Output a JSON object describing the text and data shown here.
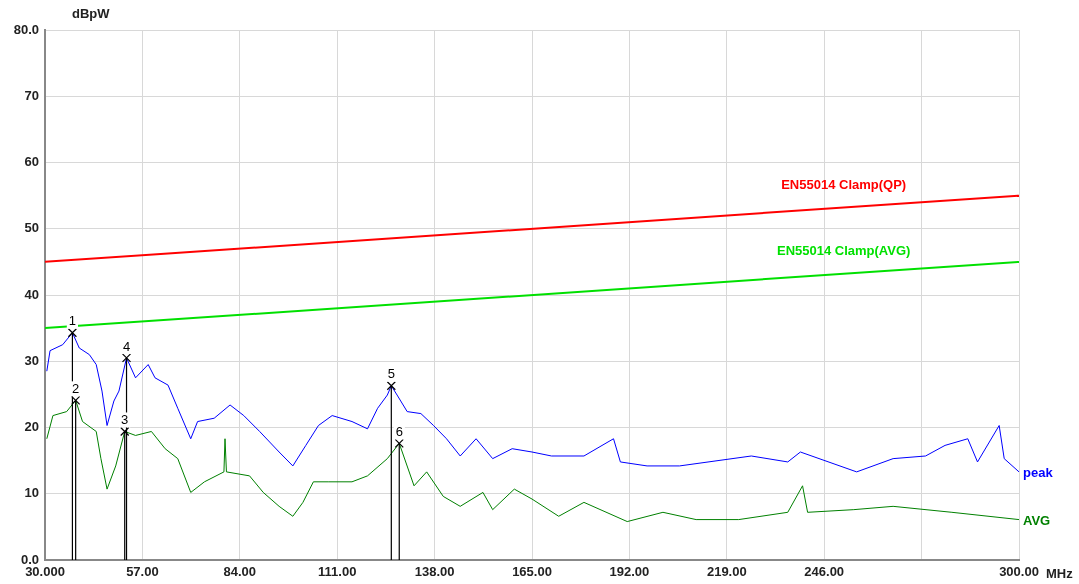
{
  "chart_data": {
    "type": "line",
    "xlabel": "MHz",
    "ylabel": "dBpW",
    "xlim": [
      30,
      300
    ],
    "xticks": [
      {
        "value": 30,
        "label": "30.000"
      },
      {
        "value": 57,
        "label": "57.00"
      },
      {
        "value": 84,
        "label": "84.00"
      },
      {
        "value": 111,
        "label": "111.00"
      },
      {
        "value": 138,
        "label": "138.00"
      },
      {
        "value": 165,
        "label": "165.00"
      },
      {
        "value": 192,
        "label": "192.00"
      },
      {
        "value": 219,
        "label": "219.00"
      },
      {
        "value": 246,
        "label": "246.00"
      },
      {
        "value": 273,
        "label": null
      },
      {
        "value": 300,
        "label": "300.00"
      }
    ],
    "ylim": [
      0,
      80
    ],
    "yticks": [
      {
        "value": 0,
        "label": "0.0"
      },
      10,
      20,
      30,
      40,
      50,
      60,
      70,
      {
        "value": 80,
        "label": "80.0"
      }
    ],
    "grid": true,
    "legend": false,
    "marker": "none",
    "series": [
      {
        "name": "EN55014 Clamp(QP)",
        "color": "#ff0000",
        "x": [
          30,
          300
        ],
        "values": [
          45,
          55
        ]
      },
      {
        "name": "EN55014 Clamp(AVG)",
        "color": "#00e000",
        "x": [
          30,
          300
        ],
        "values": [
          35,
          45
        ]
      },
      {
        "name": "peak",
        "color": "#0000ff",
        "x": [
          30.5,
          31.4,
          34.9,
          37.6,
          39.5,
          42.3,
          44.2,
          45.8,
          47.2,
          49.1,
          50.5,
          52.6,
          55.1,
          58.6,
          60.5,
          64.1,
          66.8,
          70.4,
          72.3,
          76.9,
          81.3,
          85.1,
          89.5,
          94.9,
          98.7,
          102.3,
          105.8,
          109.6,
          115.1,
          119.4,
          122.2,
          124.9,
          126.0,
          127.6,
          130.4,
          134.2,
          137.7,
          141.3,
          145.1,
          149.5,
          154.1,
          159.5,
          165.0,
          170.4,
          179.4,
          187.6,
          189.5,
          196.9,
          205.9,
          225.8,
          235.9,
          239.4,
          255.0,
          265.1,
          274.1,
          279.5,
          285.8,
          288.5,
          294.5,
          295.9,
          300
        ],
        "values": [
          28.5,
          31.6,
          32.5,
          34.3,
          32,
          31,
          29.5,
          25.5,
          20.3,
          24,
          25.5,
          30.5,
          27.5,
          29.5,
          27.5,
          26.4,
          22.9,
          18.3,
          20.9,
          21.4,
          23.4,
          21.8,
          19.4,
          16.3,
          14.2,
          17.3,
          20.3,
          21.8,
          20.9,
          19.8,
          22.9,
          24.9,
          26.3,
          24.9,
          22.4,
          22.1,
          20.3,
          18.3,
          15.7,
          18.3,
          15.3,
          16.8,
          16.3,
          15.7,
          15.7,
          18.3,
          14.8,
          14.2,
          14.2,
          15.7,
          14.8,
          16.3,
          13.3,
          15.3,
          15.7,
          17.3,
          18.3,
          14.8,
          20.3,
          15.3,
          13.3
        ]
      },
      {
        "name": "AVG",
        "color": "#008000",
        "x": [
          30.5,
          32.2,
          36.0,
          38.5,
          40.4,
          44.2,
          45.5,
          47.2,
          49.6,
          52.1,
          55.1,
          59.5,
          63.3,
          66.8,
          70.4,
          74.2,
          79.6,
          79.9,
          80.3,
          86.7,
          90.5,
          94.9,
          98.7,
          101.5,
          104.4,
          108.5,
          115.1,
          119.4,
          124.9,
          128.2,
          132.3,
          135.8,
          140.4,
          145.1,
          151.4,
          154.1,
          160.1,
          165.0,
          172.4,
          179.4,
          191.4,
          201.3,
          210.5,
          222.3,
          235.9,
          240.0,
          241.4,
          254.2,
          265.1,
          281.4,
          300
        ],
        "values": [
          18.3,
          21.8,
          22.4,
          24.1,
          20.9,
          19.4,
          15.3,
          10.7,
          14.2,
          19.4,
          18.8,
          19.4,
          16.8,
          15.3,
          10.2,
          11.8,
          13.3,
          18.3,
          13.3,
          12.7,
          10.2,
          8.1,
          6.6,
          8.7,
          11.8,
          11.8,
          11.8,
          12.7,
          15.3,
          17.6,
          11.2,
          13.3,
          9.6,
          8.1,
          10.2,
          7.6,
          10.7,
          9.2,
          6.6,
          8.7,
          5.8,
          7.2,
          6.1,
          6.1,
          7.2,
          11.2,
          7.2,
          7.6,
          8.1,
          7.2,
          6.1
        ]
      }
    ],
    "annotations": [
      {
        "text": "1",
        "x": 37.6,
        "y": 34.3
      },
      {
        "text": "2",
        "x": 38.5,
        "y": 24.1
      },
      {
        "text": "3",
        "x": 52.1,
        "y": 19.4
      },
      {
        "text": "4",
        "x": 52.6,
        "y": 30.5
      },
      {
        "text": "5",
        "x": 126.0,
        "y": 26.3
      },
      {
        "text": "6",
        "x": 128.2,
        "y": 17.6
      }
    ]
  }
}
